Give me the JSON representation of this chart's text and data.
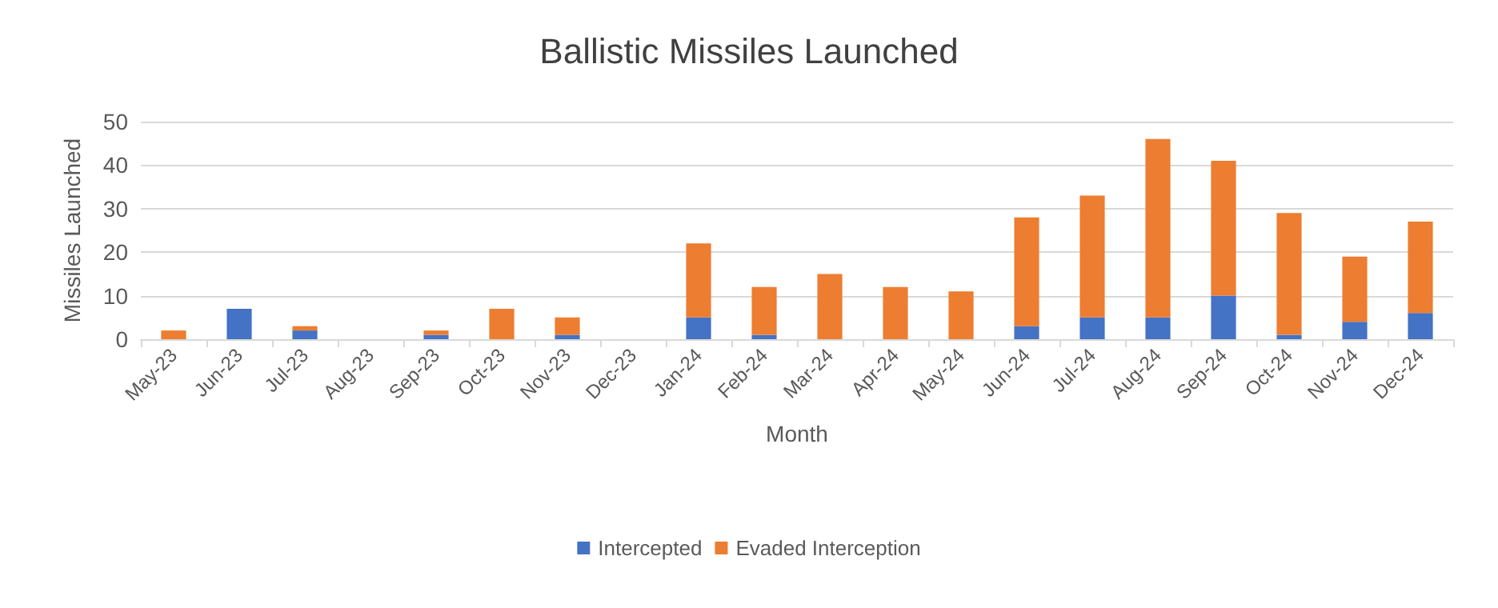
{
  "chart_data": {
    "type": "bar",
    "title": "Ballistic Missiles Launched",
    "xlabel": "Month",
    "ylabel": "Missiles Launched",
    "categories": [
      "May-23",
      "Jun-23",
      "Jul-23",
      "Aug-23",
      "Sep-23",
      "Oct-23",
      "Nov-23",
      "Dec-23",
      "Jan-24",
      "Feb-24",
      "Mar-24",
      "Apr-24",
      "May-24",
      "Jun-24",
      "Jul-24",
      "Aug-24",
      "Sep-24",
      "Oct-24",
      "Nov-24",
      "Dec-24"
    ],
    "series": [
      {
        "name": "Intercepted",
        "color": "#4472c4",
        "values": [
          0,
          7,
          2,
          0,
          1,
          0,
          1,
          0,
          5,
          1,
          0,
          0,
          0,
          3,
          5,
          5,
          10,
          1,
          4,
          6
        ]
      },
      {
        "name": "Evaded Interception",
        "color": "#ed7d31",
        "values": [
          2,
          0,
          1,
          0,
          1,
          7,
          4,
          0,
          17,
          11,
          15,
          12,
          11,
          25,
          28,
          41,
          31,
          28,
          15,
          21
        ]
      }
    ],
    "stacked": true,
    "ylim": [
      0,
      50
    ],
    "yticks": [
      0,
      10,
      20,
      30,
      40,
      50
    ],
    "grid": "y",
    "legend": "bottom"
  }
}
